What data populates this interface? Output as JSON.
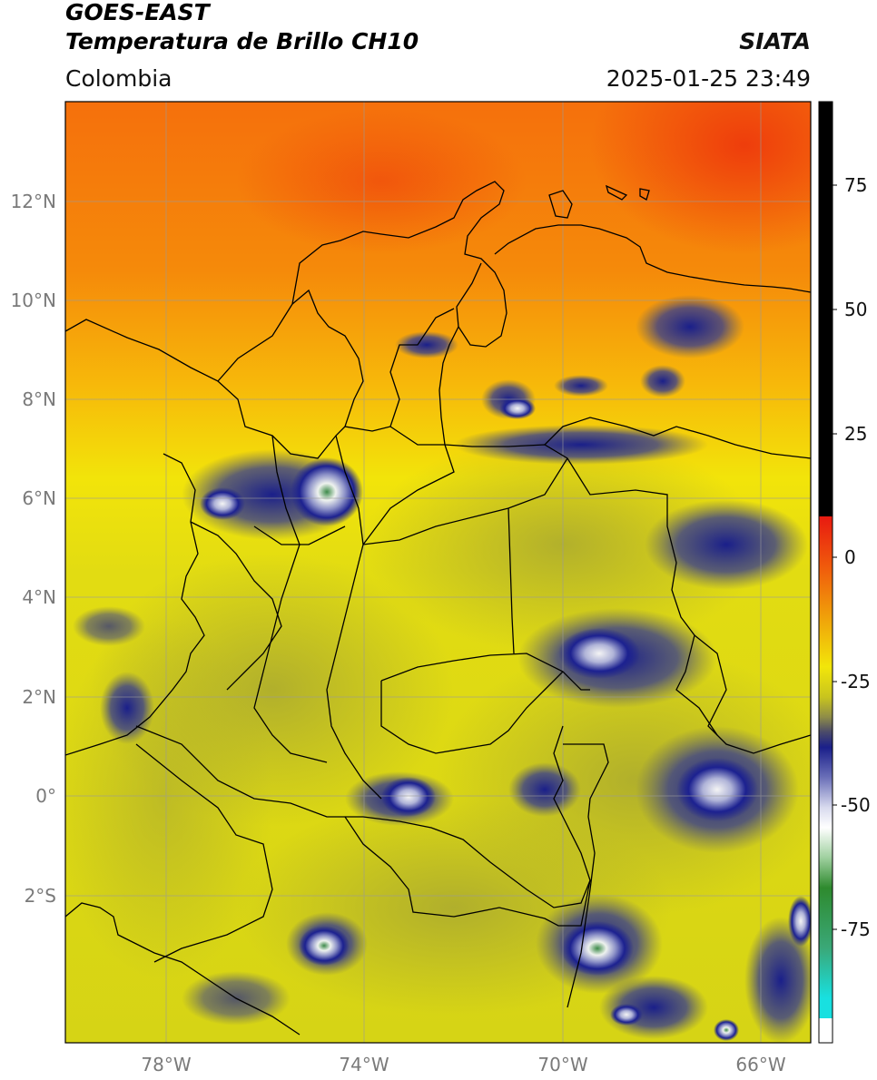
{
  "header": {
    "satellite": "GOES-EAST",
    "product": "Temperatura de Brillo CH10",
    "organization": "SIATA",
    "region": "Colombia",
    "datetime": "2025-01-25 23:49"
  },
  "map": {
    "lat_labels": [
      "12°N",
      "10°N",
      "8°N",
      "6°N",
      "4°N",
      "2°N",
      "0°",
      "2°S"
    ],
    "lon_labels": [
      "78°W",
      "74°W",
      "70°W",
      "66°W"
    ]
  },
  "colorbar": {
    "tick_labels": [
      "75",
      "50",
      "25",
      "0",
      "-25",
      "-50",
      "-75"
    ],
    "colors": {
      "warm_max": "#000000",
      "red": "#e81a10",
      "orange": "#f07a0a",
      "yellow": "#f2ee0a",
      "olive": "#b8b62a",
      "navy": "#1a1f8a",
      "white": "#ffffff",
      "green": "#2e8a2e",
      "cyan": "#18d8d8"
    }
  }
}
